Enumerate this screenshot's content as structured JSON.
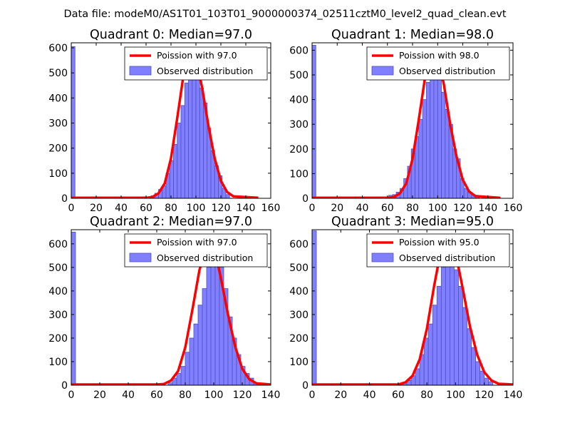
{
  "figure": {
    "suptitle": "Data file: modeM0/AS1T01_103T01_9000000374_02511cztM0_level2_quad_clean.evt"
  },
  "colors": {
    "bar_fill": "#7f7fff",
    "bar_edge": "#5050c0",
    "line": "#ff0000"
  },
  "chart_data": [
    {
      "type": "bar",
      "title": "Quadrant 0: Median=97.0",
      "xlim": [
        0,
        160
      ],
      "ylim": [
        0,
        620
      ],
      "xticks": [
        0,
        20,
        40,
        60,
        80,
        100,
        120,
        140,
        160
      ],
      "yticks": [
        0,
        100,
        200,
        300,
        400,
        500,
        600
      ],
      "legend": {
        "position": "upper-right",
        "line_label": "Poission with 97.0",
        "bar_label": "Observed distribution"
      },
      "bin_width": 3,
      "bins": [
        {
          "x": 0,
          "y": 605
        },
        {
          "x": 64,
          "y": 10
        },
        {
          "x": 67,
          "y": 20
        },
        {
          "x": 70,
          "y": 35
        },
        {
          "x": 73,
          "y": 50
        },
        {
          "x": 76,
          "y": 100
        },
        {
          "x": 79,
          "y": 150
        },
        {
          "x": 82,
          "y": 215
        },
        {
          "x": 85,
          "y": 300
        },
        {
          "x": 88,
          "y": 370
        },
        {
          "x": 91,
          "y": 460
        },
        {
          "x": 94,
          "y": 510
        },
        {
          "x": 97,
          "y": 540
        },
        {
          "x": 100,
          "y": 480
        },
        {
          "x": 103,
          "y": 440
        },
        {
          "x": 106,
          "y": 380
        },
        {
          "x": 109,
          "y": 280
        },
        {
          "x": 112,
          "y": 190
        },
        {
          "x": 115,
          "y": 130
        },
        {
          "x": 118,
          "y": 90
        },
        {
          "x": 121,
          "y": 40
        },
        {
          "x": 124,
          "y": 15
        }
      ],
      "poisson": {
        "x": [
          0,
          60,
          65,
          70,
          75,
          80,
          85,
          90,
          95,
          97,
          100,
          105,
          110,
          115,
          120,
          125,
          130,
          150
        ],
        "y": [
          2,
          2,
          5,
          20,
          60,
          160,
          320,
          490,
          585,
          590,
          560,
          440,
          290,
          160,
          70,
          25,
          8,
          2
        ]
      }
    },
    {
      "type": "bar",
      "title": "Quadrant 1: Median=98.0",
      "xlim": [
        0,
        160
      ],
      "ylim": [
        0,
        630
      ],
      "xticks": [
        0,
        20,
        40,
        60,
        80,
        100,
        120,
        140,
        160
      ],
      "yticks": [
        0,
        100,
        200,
        300,
        400,
        500,
        600
      ],
      "legend": {
        "position": "upper-right",
        "line_label": "Poission with 98.0",
        "bar_label": "Observed distribution"
      },
      "bin_width": 3,
      "bins": [
        {
          "x": 0,
          "y": 620
        },
        {
          "x": 61,
          "y": 12
        },
        {
          "x": 64,
          "y": 15
        },
        {
          "x": 67,
          "y": 25
        },
        {
          "x": 70,
          "y": 40
        },
        {
          "x": 73,
          "y": 80
        },
        {
          "x": 76,
          "y": 130
        },
        {
          "x": 79,
          "y": 200
        },
        {
          "x": 82,
          "y": 250
        },
        {
          "x": 85,
          "y": 320
        },
        {
          "x": 88,
          "y": 400
        },
        {
          "x": 91,
          "y": 470
        },
        {
          "x": 94,
          "y": 520
        },
        {
          "x": 97,
          "y": 500
        },
        {
          "x": 100,
          "y": 490
        },
        {
          "x": 103,
          "y": 430
        },
        {
          "x": 106,
          "y": 360
        },
        {
          "x": 109,
          "y": 300
        },
        {
          "x": 112,
          "y": 200
        },
        {
          "x": 115,
          "y": 160
        },
        {
          "x": 118,
          "y": 80
        },
        {
          "x": 121,
          "y": 40
        },
        {
          "x": 124,
          "y": 25
        },
        {
          "x": 127,
          "y": 15
        },
        {
          "x": 130,
          "y": 10
        }
      ],
      "poisson": {
        "x": [
          0,
          60,
          65,
          70,
          75,
          80,
          85,
          90,
          95,
          98,
          100,
          105,
          110,
          115,
          120,
          125,
          130,
          150
        ],
        "y": [
          2,
          2,
          5,
          20,
          60,
          160,
          320,
          490,
          585,
          590,
          580,
          460,
          300,
          170,
          75,
          28,
          9,
          2
        ]
      }
    },
    {
      "type": "bar",
      "title": "Quadrant 2: Median=97.0",
      "xlim": [
        0,
        140
      ],
      "ylim": [
        0,
        660
      ],
      "xticks": [
        0,
        20,
        40,
        60,
        80,
        100,
        120,
        140
      ],
      "yticks": [
        0,
        100,
        200,
        300,
        400,
        500,
        600
      ],
      "legend": {
        "position": "upper-right",
        "line_label": "Poission with 97.0",
        "bar_label": "Observed distribution"
      },
      "bin_width": 3,
      "bins": [
        {
          "x": 0,
          "y": 650
        },
        {
          "x": 68,
          "y": 10
        },
        {
          "x": 71,
          "y": 30
        },
        {
          "x": 74,
          "y": 50
        },
        {
          "x": 77,
          "y": 80
        },
        {
          "x": 80,
          "y": 140
        },
        {
          "x": 83,
          "y": 200
        },
        {
          "x": 86,
          "y": 260
        },
        {
          "x": 89,
          "y": 340
        },
        {
          "x": 92,
          "y": 410
        },
        {
          "x": 95,
          "y": 500
        },
        {
          "x": 98,
          "y": 560
        },
        {
          "x": 101,
          "y": 560
        },
        {
          "x": 104,
          "y": 500
        },
        {
          "x": 107,
          "y": 410
        },
        {
          "x": 110,
          "y": 290
        },
        {
          "x": 113,
          "y": 200
        },
        {
          "x": 116,
          "y": 130
        },
        {
          "x": 119,
          "y": 80
        },
        {
          "x": 122,
          "y": 50
        },
        {
          "x": 125,
          "y": 30
        },
        {
          "x": 128,
          "y": 10
        }
      ],
      "poisson": {
        "x": [
          0,
          60,
          65,
          70,
          75,
          80,
          85,
          90,
          95,
          97,
          100,
          105,
          110,
          115,
          120,
          125,
          130,
          140
        ],
        "y": [
          3,
          3,
          5,
          20,
          60,
          160,
          320,
          490,
          585,
          628,
          595,
          455,
          300,
          165,
          70,
          25,
          8,
          3
        ]
      }
    },
    {
      "type": "bar",
      "title": "Quadrant 3: Median=95.0",
      "xlim": [
        0,
        140
      ],
      "ylim": [
        0,
        660
      ],
      "xticks": [
        0,
        20,
        40,
        60,
        80,
        100,
        120,
        140
      ],
      "yticks": [
        0,
        100,
        200,
        300,
        400,
        500,
        600
      ],
      "legend": {
        "position": "upper-right",
        "line_label": "Poission with 95.0",
        "bar_label": "Observed distribution"
      },
      "bin_width": 3,
      "bins": [
        {
          "x": 0,
          "y": 655
        },
        {
          "x": 63,
          "y": 10
        },
        {
          "x": 66,
          "y": 20
        },
        {
          "x": 69,
          "y": 40
        },
        {
          "x": 72,
          "y": 70
        },
        {
          "x": 75,
          "y": 130
        },
        {
          "x": 78,
          "y": 200
        },
        {
          "x": 81,
          "y": 260
        },
        {
          "x": 84,
          "y": 340
        },
        {
          "x": 87,
          "y": 420
        },
        {
          "x": 90,
          "y": 500
        },
        {
          "x": 93,
          "y": 560
        },
        {
          "x": 96,
          "y": 540
        },
        {
          "x": 99,
          "y": 490
        },
        {
          "x": 102,
          "y": 420
        },
        {
          "x": 105,
          "y": 330
        },
        {
          "x": 108,
          "y": 240
        },
        {
          "x": 111,
          "y": 160
        },
        {
          "x": 114,
          "y": 100
        },
        {
          "x": 117,
          "y": 60
        },
        {
          "x": 120,
          "y": 30
        },
        {
          "x": 123,
          "y": 15
        }
      ],
      "poisson": {
        "x": [
          0,
          60,
          65,
          70,
          75,
          80,
          85,
          90,
          93,
          95,
          100,
          105,
          110,
          115,
          120,
          125,
          130,
          140
        ],
        "y": [
          3,
          3,
          12,
          40,
          110,
          240,
          420,
          580,
          625,
          632,
          560,
          410,
          250,
          130,
          55,
          20,
          6,
          3
        ]
      }
    }
  ]
}
